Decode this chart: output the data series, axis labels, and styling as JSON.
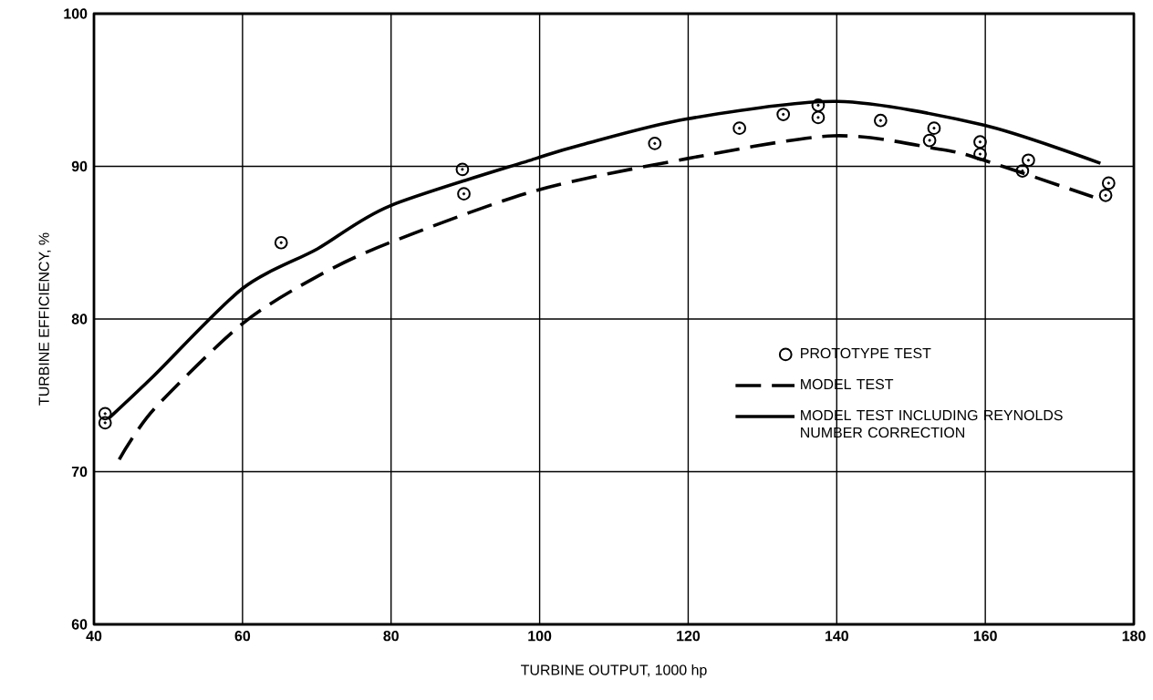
{
  "chart_data": {
    "type": "line",
    "xlabel": "TURBINE OUTPUT, 1000 hp",
    "ylabel": "TURBINE EFFICIENCY, %",
    "xlim": [
      40,
      180
    ],
    "ylim": [
      60,
      100
    ],
    "xticks": [
      40,
      60,
      80,
      100,
      120,
      140,
      160,
      180
    ],
    "yticks": [
      60,
      70,
      80,
      90,
      100
    ],
    "grid": true,
    "legend": "right",
    "series": [
      {
        "name": "PROTOTYPE TEST",
        "type": "scatter",
        "marker": "circle",
        "color": "#000000",
        "x": [
          41.5,
          41.5,
          65.2,
          89.6,
          89.8,
          115.5,
          126.9,
          132.8,
          137.5,
          137.5,
          145.9,
          153.1,
          152.5,
          159.3,
          159.3,
          165.8,
          165.0,
          176.6,
          176.2
        ],
        "values": [
          73.8,
          73.2,
          85.0,
          89.8,
          88.2,
          91.5,
          92.5,
          93.4,
          94.0,
          93.2,
          93.0,
          92.5,
          91.7,
          91.6,
          90.8,
          90.4,
          89.7,
          88.9,
          88.1
        ]
      },
      {
        "name": "MODEL TEST",
        "type": "line",
        "line_style": "dashed",
        "color": "#000000",
        "x": [
          43.4,
          48.1,
          60,
          70.1,
          79.8,
          99.4,
          119.8,
          139.6,
          154.1,
          159.8,
          174.5
        ],
        "values": [
          70.8,
          74.1,
          79.7,
          82.8,
          85.0,
          88.4,
          90.5,
          92.0,
          91.1,
          90.4,
          88.0
        ]
      },
      {
        "name": "MODEL TEST INCLUDING REYNOLDS NUMBER CORRECTION",
        "type": "line",
        "line_style": "solid",
        "color": "#000000",
        "x": [
          42,
          48.1,
          60,
          70.1,
          79.8,
          99.4,
          105.6,
          119.8,
          140.1,
          159.8,
          175.5
        ],
        "values": [
          73.5,
          76.3,
          82.0,
          84.6,
          87.4,
          90.5,
          91.4,
          93.1,
          94.25,
          92.7,
          90.2
        ]
      }
    ]
  }
}
